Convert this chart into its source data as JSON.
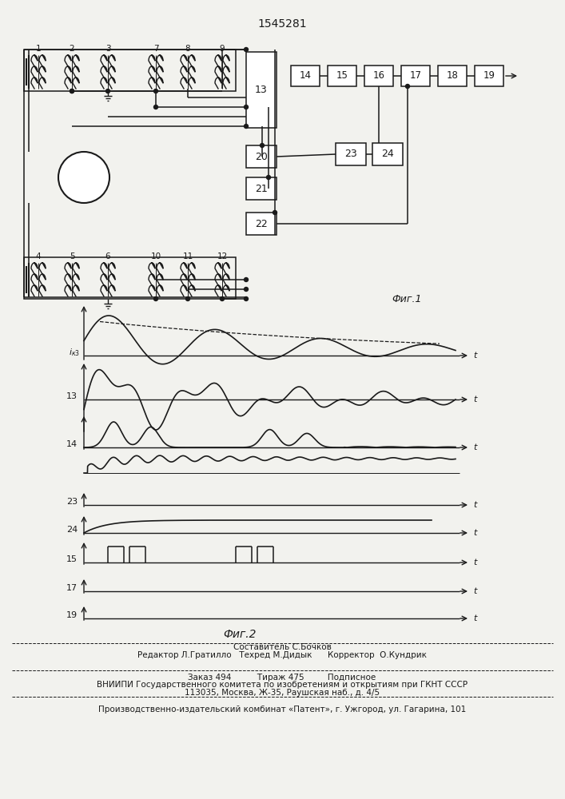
{
  "title": "1545281",
  "fig1_label": "Фиг.1",
  "fig2_label": "Фиг.2",
  "footer_lines": [
    "Составитель С.Бочков",
    "Редактор Л.Гратилло   Техред М.Дидык      Корректор  О.Кундрик",
    "Заказ 494          Тираж 475         Подписное",
    "ВНИИПИ Государственного комитета по изобретениям и открытиям при ГКНТ СССР",
    "113035, Москва, Ж-35, Раушская наб., д. 4/5",
    "Производственно-издательский комбинат «Патент», г. Ужгород, ул. Гагарина, 101"
  ],
  "bg_color": "#f2f2ee",
  "line_color": "#1a1a1a"
}
